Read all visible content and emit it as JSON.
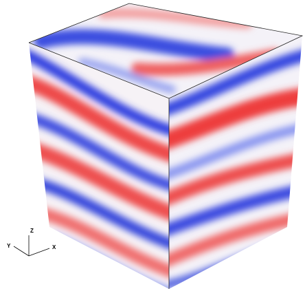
{
  "axes": {
    "z": "Z",
    "y": "Y",
    "x": "X"
  }
}
